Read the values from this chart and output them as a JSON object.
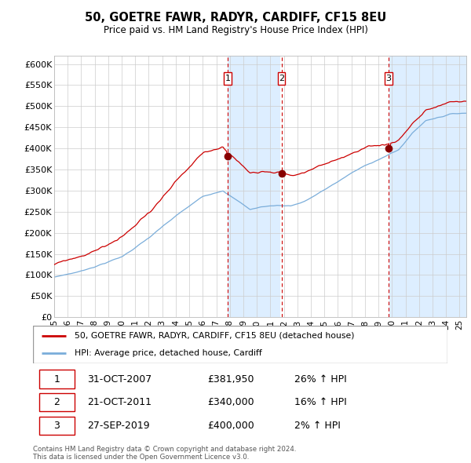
{
  "title": "50, GOETRE FAWR, RADYR, CARDIFF, CF15 8EU",
  "subtitle": "Price paid vs. HM Land Registry's House Price Index (HPI)",
  "sale_prices": [
    381950,
    340000,
    400000
  ],
  "sale_labels": [
    "1",
    "2",
    "3"
  ],
  "sale_hpi_pct": [
    "26% ↑ HPI",
    "16% ↑ HPI",
    "2% ↑ HPI"
  ],
  "sale_date_strs": [
    "31-OCT-2007",
    "21-OCT-2011",
    "27-SEP-2019"
  ],
  "sale_price_strs": [
    "£381,950",
    "£340,000",
    "£400,000"
  ],
  "sale_times": [
    2007.833,
    2011.833,
    2019.75
  ],
  "ylabel_ticks": [
    0,
    50000,
    100000,
    150000,
    200000,
    250000,
    300000,
    350000,
    400000,
    450000,
    500000,
    550000,
    600000
  ],
  "ylabel_labels": [
    "£0",
    "£50K",
    "£100K",
    "£150K",
    "£200K",
    "£250K",
    "£300K",
    "£350K",
    "£400K",
    "£450K",
    "£500K",
    "£550K",
    "£600K"
  ],
  "xtick_years": [
    1995,
    1996,
    1997,
    1998,
    1999,
    2000,
    2001,
    2002,
    2003,
    2004,
    2005,
    2006,
    2007,
    2008,
    2009,
    2010,
    2011,
    2012,
    2013,
    2014,
    2015,
    2016,
    2017,
    2018,
    2019,
    2020,
    2021,
    2022,
    2023,
    2024,
    2025
  ],
  "hpi_color": "#7aadda",
  "price_color": "#cc0000",
  "marker_color": "#880000",
  "vline_color": "#cc0000",
  "shade_color": "#ddeeff",
  "grid_color": "#cccccc",
  "bg_color": "#ffffff",
  "legend_label_red": "50, GOETRE FAWR, RADYR, CARDIFF, CF15 8EU (detached house)",
  "legend_label_blue": "HPI: Average price, detached house, Cardiff",
  "footer": "Contains HM Land Registry data © Crown copyright and database right 2024.\nThis data is licensed under the Open Government Licence v3.0.",
  "xmin_year": 1995.0,
  "xmax_year": 2025.5,
  "ymin": 0,
  "ymax": 620000
}
